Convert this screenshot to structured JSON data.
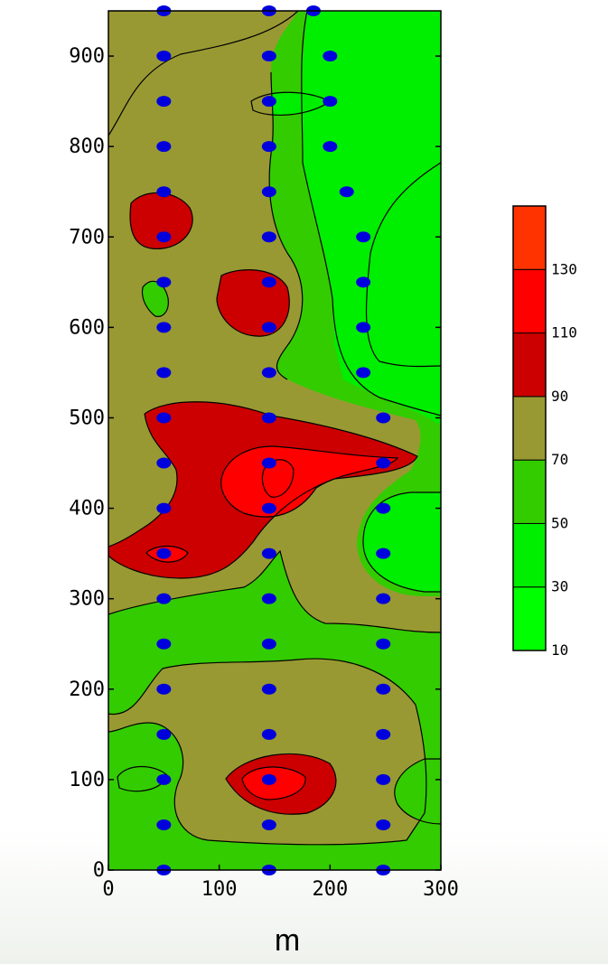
{
  "chart_data": {
    "type": "heatmap",
    "subtype": "filled-contour",
    "title": "",
    "xlabel": "m",
    "ylabel": "",
    "xlim": [
      0,
      300
    ],
    "ylim": [
      0,
      950
    ],
    "x_ticks": [
      "0",
      "100",
      "200",
      "300"
    ],
    "y_ticks": [
      "0",
      "100",
      "200",
      "300",
      "400",
      "500",
      "600",
      "700",
      "800",
      "900"
    ],
    "colorbar": {
      "levels": [
        10,
        30,
        50,
        70,
        90,
        110,
        130
      ],
      "labels": [
        "10",
        "30",
        "50",
        "70",
        "90",
        "110",
        "130"
      ],
      "colors": [
        "#00ff00",
        "#00ee00",
        "#33cc00",
        "#999933",
        "#cc0000",
        "#ff0000",
        "#ff3300"
      ]
    },
    "band_colors": {
      "light_green": "#00ee00",
      "green": "#33cc00",
      "olive": "#999933",
      "dark_red": "#cc0000",
      "red": "#ff0000"
    },
    "measurement_color": "#0000dd",
    "measurement_points": [
      {
        "x": 50,
        "y": 0
      },
      {
        "x": 50,
        "y": 50
      },
      {
        "x": 50,
        "y": 100
      },
      {
        "x": 50,
        "y": 150
      },
      {
        "x": 50,
        "y": 200
      },
      {
        "x": 50,
        "y": 250
      },
      {
        "x": 50,
        "y": 300
      },
      {
        "x": 50,
        "y": 350
      },
      {
        "x": 50,
        "y": 400
      },
      {
        "x": 50,
        "y": 450
      },
      {
        "x": 50,
        "y": 500
      },
      {
        "x": 50,
        "y": 550
      },
      {
        "x": 50,
        "y": 600
      },
      {
        "x": 50,
        "y": 650
      },
      {
        "x": 50,
        "y": 700
      },
      {
        "x": 50,
        "y": 750
      },
      {
        "x": 50,
        "y": 800
      },
      {
        "x": 50,
        "y": 850
      },
      {
        "x": 50,
        "y": 900
      },
      {
        "x": 50,
        "y": 950
      },
      {
        "x": 145,
        "y": 0
      },
      {
        "x": 145,
        "y": 50
      },
      {
        "x": 145,
        "y": 100
      },
      {
        "x": 145,
        "y": 150
      },
      {
        "x": 145,
        "y": 200
      },
      {
        "x": 145,
        "y": 250
      },
      {
        "x": 145,
        "y": 300
      },
      {
        "x": 145,
        "y": 350
      },
      {
        "x": 145,
        "y": 400
      },
      {
        "x": 145,
        "y": 450
      },
      {
        "x": 145,
        "y": 500
      },
      {
        "x": 145,
        "y": 550
      },
      {
        "x": 145,
        "y": 600
      },
      {
        "x": 145,
        "y": 650
      },
      {
        "x": 145,
        "y": 700
      },
      {
        "x": 145,
        "y": 750
      },
      {
        "x": 145,
        "y": 800
      },
      {
        "x": 145,
        "y": 850
      },
      {
        "x": 145,
        "y": 900
      },
      {
        "x": 145,
        "y": 950
      },
      {
        "x": 185,
        "y": 950
      },
      {
        "x": 200,
        "y": 900
      },
      {
        "x": 200,
        "y": 850
      },
      {
        "x": 200,
        "y": 800
      },
      {
        "x": 215,
        "y": 750
      },
      {
        "x": 230,
        "y": 700
      },
      {
        "x": 230,
        "y": 650
      },
      {
        "x": 230,
        "y": 600
      },
      {
        "x": 230,
        "y": 550
      },
      {
        "x": 248,
        "y": 0
      },
      {
        "x": 248,
        "y": 50
      },
      {
        "x": 248,
        "y": 100
      },
      {
        "x": 248,
        "y": 150
      },
      {
        "x": 248,
        "y": 200
      },
      {
        "x": 248,
        "y": 250
      },
      {
        "x": 248,
        "y": 300
      },
      {
        "x": 248,
        "y": 350
      },
      {
        "x": 248,
        "y": 400
      },
      {
        "x": 248,
        "y": 450
      },
      {
        "x": 248,
        "y": 500
      }
    ],
    "grid": false
  }
}
